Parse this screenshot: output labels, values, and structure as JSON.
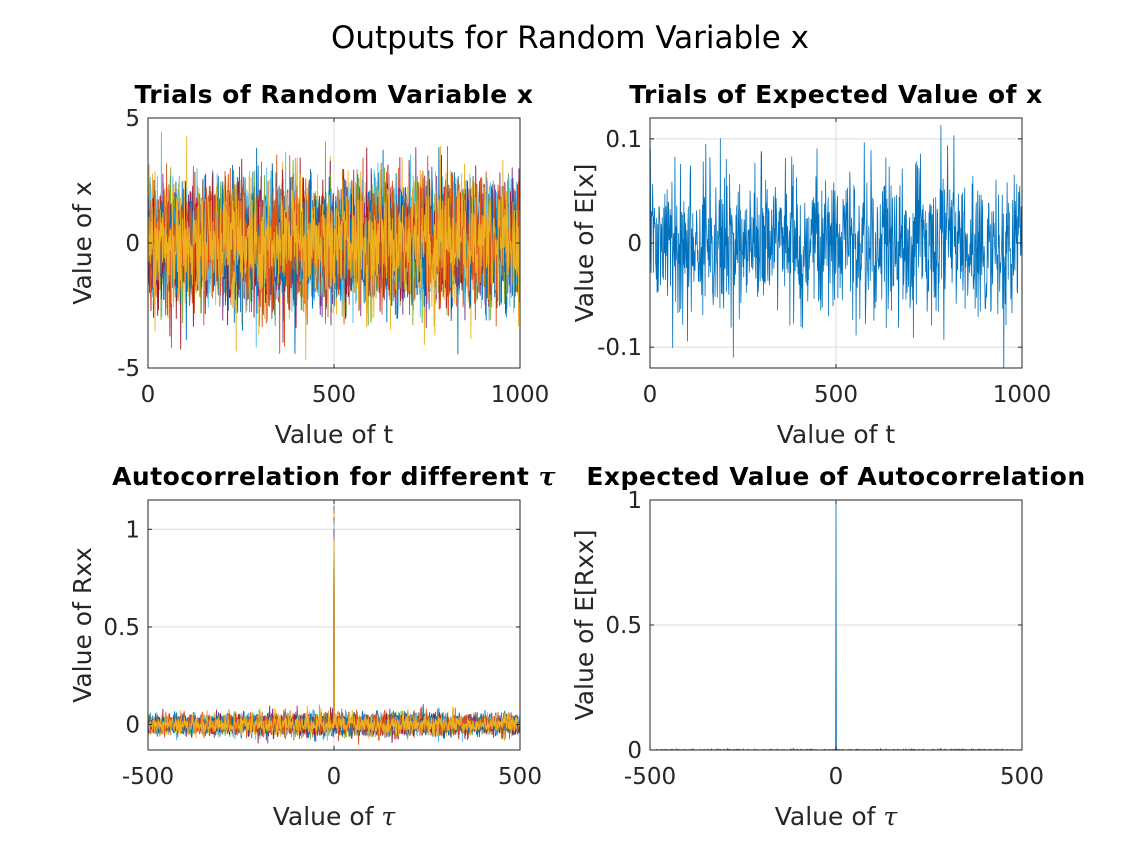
{
  "figure": {
    "title": "Outputs for Random Variable x"
  },
  "chart_data": [
    {
      "id": "trials-x",
      "type": "line",
      "title": "Trials of Random Variable x",
      "xlabel": "Value of t",
      "ylabel": "Value of x",
      "xlim": [
        0,
        1000
      ],
      "ylim": [
        -5,
        5
      ],
      "xticks": [
        0,
        500,
        1000
      ],
      "xtick_labels": [
        "0",
        "500",
        "1000"
      ],
      "yticks": [
        -5,
        0,
        5
      ],
      "ytick_labels": [
        "-5",
        "0",
        "5"
      ],
      "grid": true,
      "series_kind": "many-trials",
      "noise": {
        "n": 1001,
        "x0": 0,
        "dx": 1,
        "sigma": 1.2,
        "trials": 10
      },
      "colors": [
        "#0072BD",
        "#D95319",
        "#EDB120",
        "#7E2F8E",
        "#77AC30",
        "#4DBEEE",
        "#A2142F"
      ]
    },
    {
      "id": "expected-x",
      "type": "line",
      "title": "Trials of Expected Value of x",
      "xlabel": "Value of t",
      "ylabel": "Value of E[x]",
      "xlim": [
        0,
        1000
      ],
      "ylim": [
        -0.12,
        0.12
      ],
      "xticks": [
        0,
        500,
        1000
      ],
      "xtick_labels": [
        "0",
        "500",
        "1000"
      ],
      "yticks": [
        -0.1,
        0,
        0.1
      ],
      "ytick_labels": [
        "-0.1",
        "0",
        "0.1"
      ],
      "grid": true,
      "series_kind": "single-noise",
      "noise": {
        "n": 1001,
        "x0": 0,
        "dx": 1,
        "sigma": 0.035,
        "trials": 1
      },
      "colors": [
        "#0072BD"
      ]
    },
    {
      "id": "autocorr-trials",
      "type": "line",
      "title": "Autocorrelation for different τ",
      "xlabel": "Value of τ",
      "ylabel": "Value of Rxx",
      "xlim": [
        -500,
        500
      ],
      "ylim": [
        -0.13,
        1.15
      ],
      "xticks": [
        -500,
        0,
        500
      ],
      "xtick_labels": [
        "-500",
        "0",
        "500"
      ],
      "yticks": [
        0,
        0.5,
        1
      ],
      "ytick_labels": [
        "0",
        "0.5",
        "1"
      ],
      "grid": true,
      "series_kind": "many-trials-spike",
      "noise": {
        "n": 1001,
        "x0": -500,
        "dx": 1,
        "sigma": 0.03,
        "trials": 10
      },
      "spike": {
        "x": 0,
        "y": 1.12
      },
      "colors": [
        "#0072BD",
        "#D95319",
        "#EDB120",
        "#7E2F8E",
        "#77AC30",
        "#4DBEEE",
        "#A2142F"
      ]
    },
    {
      "id": "expected-autocorr",
      "type": "line",
      "title": "Expected Value of Autocorrelation",
      "xlabel": "Value of τ",
      "ylabel": "Value of E[Rxx]",
      "xlim": [
        -500,
        500
      ],
      "ylim": [
        0,
        1
      ],
      "xticks": [
        -500,
        0,
        500
      ],
      "xtick_labels": [
        "-500",
        "0",
        "500"
      ],
      "yticks": [
        0,
        0.5,
        1
      ],
      "ytick_labels": [
        "0",
        "0.5",
        "1"
      ],
      "grid": true,
      "series_kind": "single-spike",
      "noise": {
        "n": 1001,
        "x0": -500,
        "dx": 1,
        "sigma": 0.002,
        "trials": 1
      },
      "spike": {
        "x": 0,
        "y": 1.0
      },
      "colors": [
        "#0072BD"
      ]
    }
  ]
}
